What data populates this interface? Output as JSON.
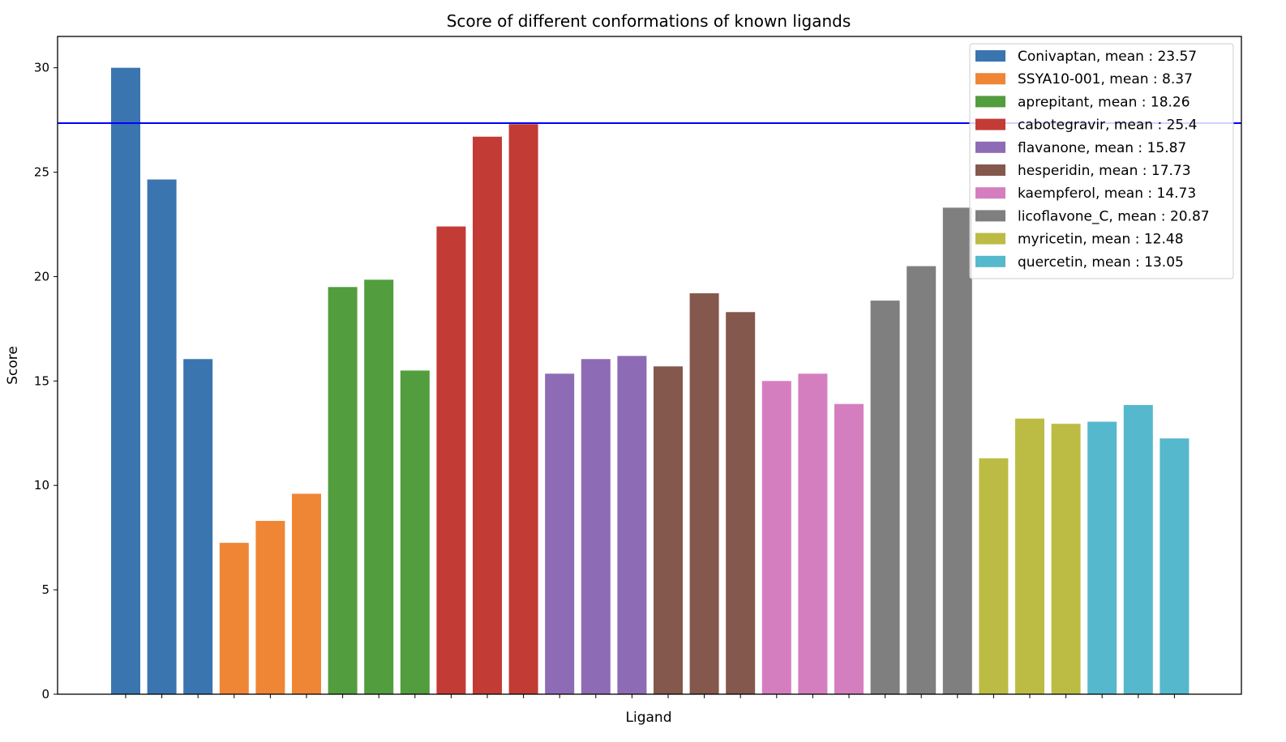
{
  "chart_data": {
    "type": "bar",
    "title": "Score of different conformations of known ligands",
    "xlabel": "Ligand",
    "ylabel": "Score",
    "ylim": [
      0,
      31.5
    ],
    "yticks": [
      0,
      5,
      10,
      15,
      20,
      25,
      30
    ],
    "grid": false,
    "legend_placement": "top-right",
    "reference_line": {
      "y": 27.35,
      "color": "#0000ff"
    },
    "series": [
      {
        "name": "Conivaptan, mean : 23.57",
        "color": "#3a75b0",
        "values": [
          30.0,
          24.65,
          16.05
        ]
      },
      {
        "name": "SSYA10-001, mean : 8.37",
        "color": "#ef8636",
        "values": [
          7.25,
          8.3,
          9.6
        ]
      },
      {
        "name": "aprepitant, mean : 18.26",
        "color": "#529d3e",
        "values": [
          19.5,
          19.85,
          15.5
        ]
      },
      {
        "name": "cabotegravir, mean : 25.4",
        "color": "#c33b35",
        "values": [
          22.4,
          26.7,
          27.3
        ]
      },
      {
        "name": "flavanone, mean : 15.87",
        "color": "#8e6bb5",
        "values": [
          15.35,
          16.05,
          16.2
        ]
      },
      {
        "name": "hesperidin, mean : 17.73",
        "color": "#85584d",
        "values": [
          15.7,
          19.2,
          18.3
        ]
      },
      {
        "name": "kaempferol, mean : 14.73",
        "color": "#d57ebf",
        "values": [
          15.0,
          15.35,
          13.9
        ]
      },
      {
        "name": "licoflavone_C, mean : 20.87",
        "color": "#7f7f7f",
        "values": [
          18.85,
          20.5,
          23.3
        ]
      },
      {
        "name": "myricetin, mean : 12.48",
        "color": "#bcbc45",
        "values": [
          11.3,
          13.2,
          12.95
        ]
      },
      {
        "name": "quercetin, mean : 13.05",
        "color": "#56b8cc",
        "values": [
          13.05,
          13.85,
          12.25
        ]
      }
    ]
  }
}
